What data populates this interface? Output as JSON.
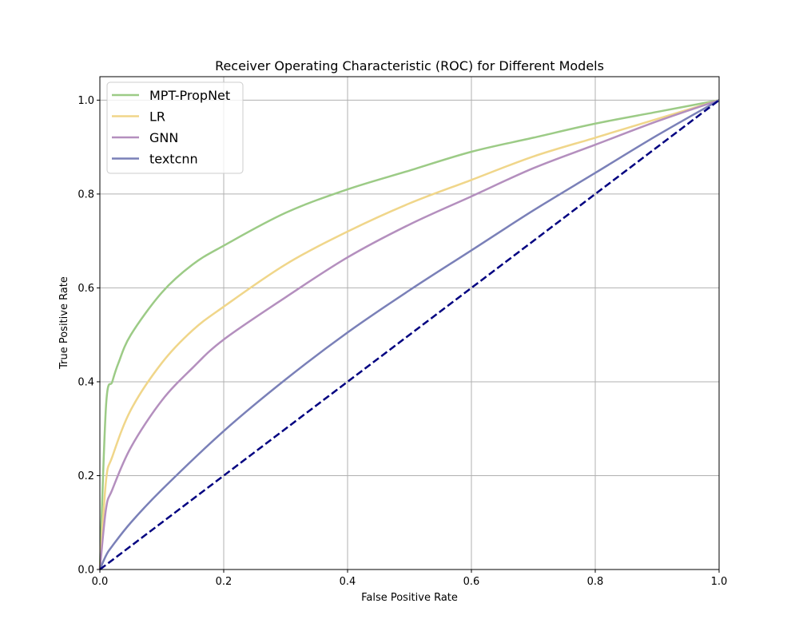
{
  "chart_data": {
    "type": "line",
    "title": "Receiver Operating Characteristic (ROC) for Different Models",
    "xlabel": "False Positive Rate",
    "ylabel": "True Positive Rate",
    "xlim": [
      0.0,
      1.0
    ],
    "ylim": [
      0.0,
      1.05
    ],
    "xticks": [
      "0.0",
      "0.2",
      "0.4",
      "0.6",
      "0.8",
      "1.0"
    ],
    "yticks": [
      "0.0",
      "0.2",
      "0.4",
      "0.6",
      "0.8",
      "1.0"
    ],
    "grid": true,
    "legend_position": "top-left",
    "series": [
      {
        "name": "MPT-PropNet",
        "color": "#9ccb86",
        "x": [
          0,
          0.01,
          0.02,
          0.03,
          0.05,
          0.1,
          0.15,
          0.2,
          0.3,
          0.4,
          0.5,
          0.6,
          0.7,
          0.8,
          0.9,
          1.0
        ],
        "y": [
          0,
          0.35,
          0.4,
          0.44,
          0.5,
          0.59,
          0.65,
          0.69,
          0.76,
          0.81,
          0.85,
          0.89,
          0.92,
          0.95,
          0.975,
          1.0
        ]
      },
      {
        "name": "LR",
        "color": "#f0d68a",
        "x": [
          0,
          0.01,
          0.02,
          0.05,
          0.1,
          0.15,
          0.2,
          0.3,
          0.4,
          0.5,
          0.6,
          0.7,
          0.8,
          0.9,
          1.0
        ],
        "y": [
          0,
          0.19,
          0.24,
          0.34,
          0.44,
          0.51,
          0.56,
          0.65,
          0.72,
          0.78,
          0.83,
          0.88,
          0.92,
          0.96,
          1.0
        ]
      },
      {
        "name": "GNN",
        "color": "#b48fbe",
        "x": [
          0,
          0.01,
          0.02,
          0.05,
          0.1,
          0.15,
          0.2,
          0.3,
          0.4,
          0.5,
          0.6,
          0.7,
          0.8,
          0.9,
          1.0
        ],
        "y": [
          0,
          0.13,
          0.17,
          0.26,
          0.36,
          0.43,
          0.49,
          0.58,
          0.665,
          0.735,
          0.795,
          0.855,
          0.905,
          0.955,
          1.0
        ]
      },
      {
        "name": "textcnn",
        "color": "#7a80b8",
        "x": [
          0,
          0.01,
          0.02,
          0.05,
          0.1,
          0.2,
          0.3,
          0.4,
          0.5,
          0.6,
          0.7,
          0.8,
          0.9,
          1.0
        ],
        "y": [
          0,
          0.03,
          0.05,
          0.1,
          0.17,
          0.295,
          0.405,
          0.505,
          0.595,
          0.68,
          0.765,
          0.845,
          0.925,
          1.0
        ]
      },
      {
        "color": "#000080",
        "dashed": true,
        "x": [
          0,
          1
        ],
        "y": [
          0,
          1
        ]
      }
    ]
  }
}
